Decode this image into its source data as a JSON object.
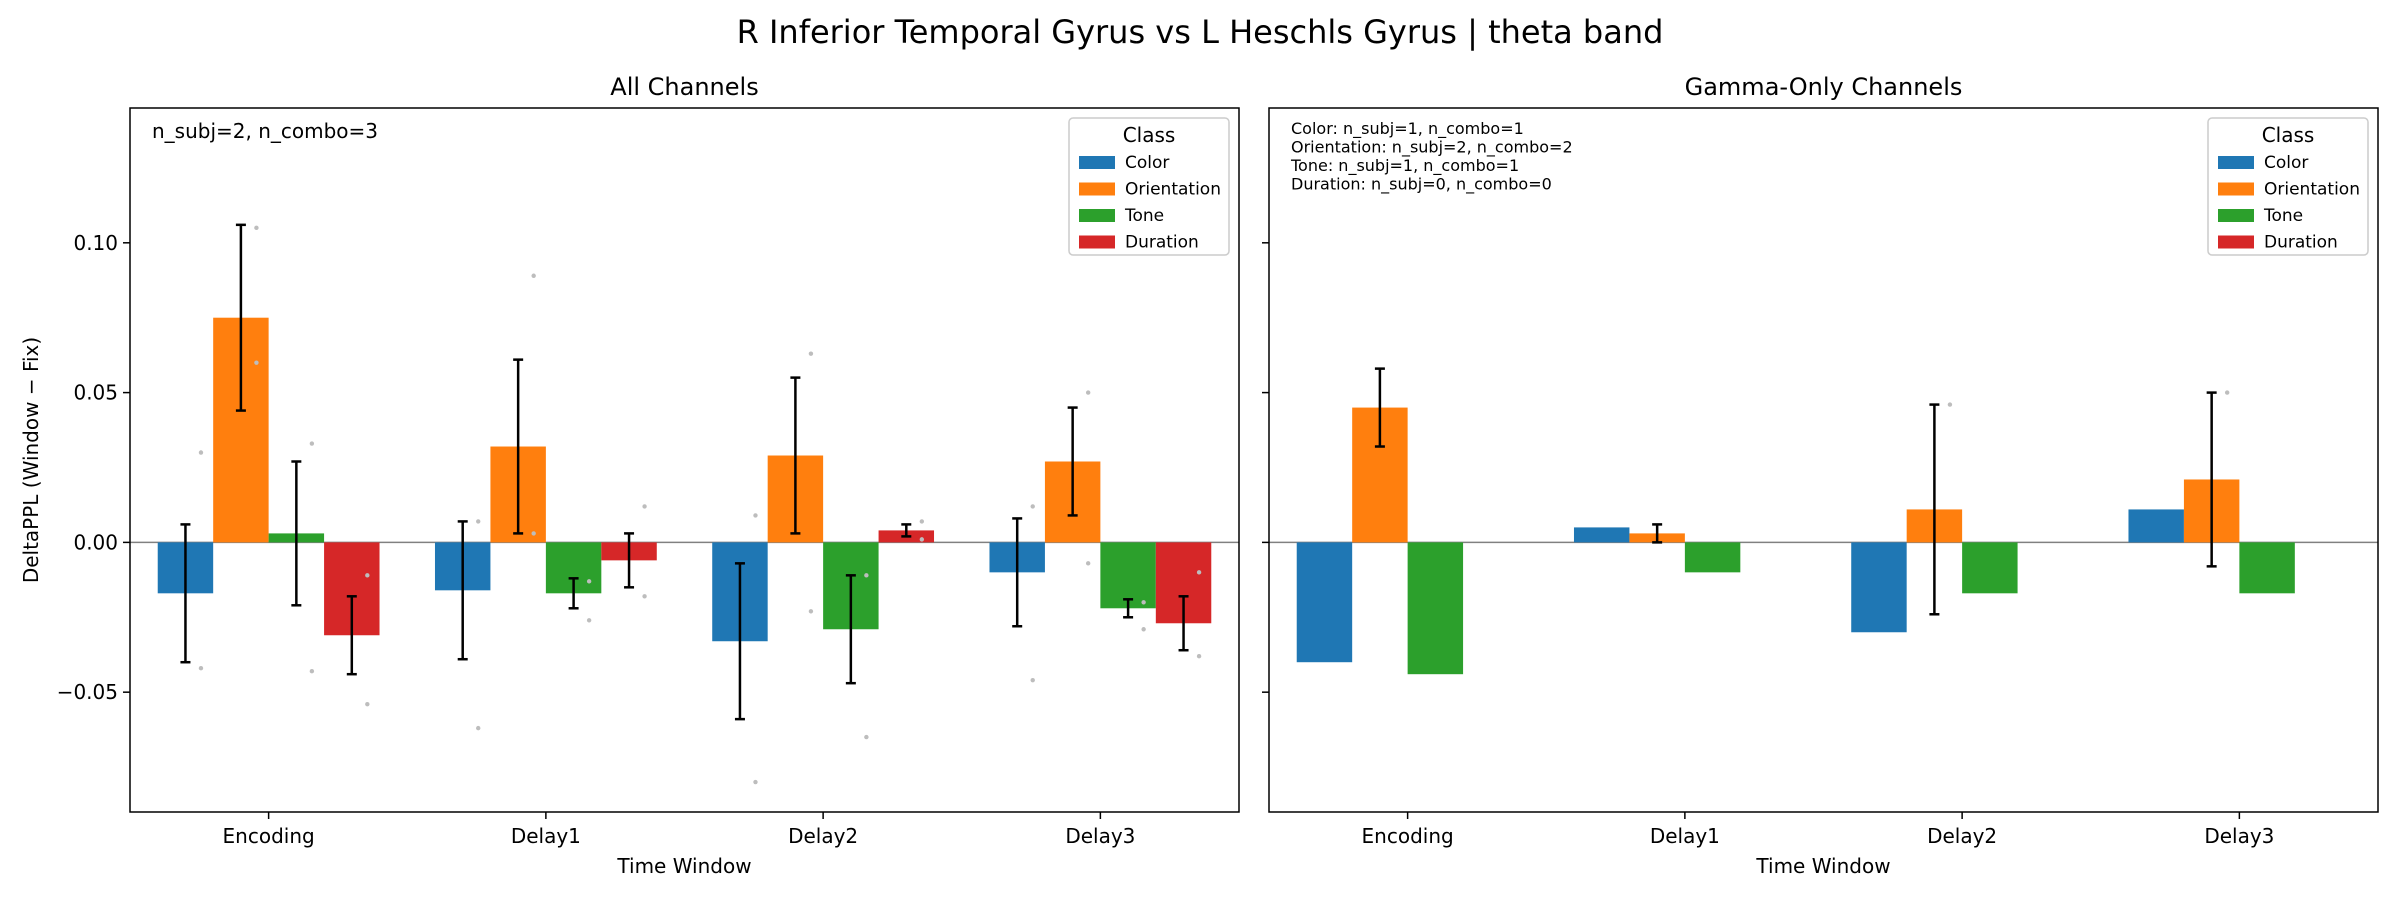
{
  "suptitle": "R Inferior Temporal Gyrus vs L Heschls Gyrus  |  theta band",
  "colors": {
    "Color": "#1f77b4",
    "Orientation": "#ff7f0e",
    "Tone": "#2ca02c",
    "Duration": "#d62728",
    "errorbar": "#000000",
    "zero_line": "#808080",
    "points": "#bdbdbd"
  },
  "chart_data": [
    {
      "type": "bar",
      "title": "All Channels",
      "xlabel": "Time Window",
      "ylabel": "DeltaPPL (Window − Fix)",
      "categories": [
        "Encoding",
        "Delay1",
        "Delay2",
        "Delay3"
      ],
      "ylim": [
        -0.09,
        0.145
      ],
      "yticks": [
        -0.05,
        0.0,
        0.05,
        0.1
      ],
      "ytick_labels": [
        "−0.05",
        "0.00",
        "0.05",
        "0.10"
      ],
      "legend_title": "Class",
      "legend_position": "top-right",
      "annotations": [
        "n_subj=2, n_combo=3"
      ],
      "series": [
        {
          "name": "Color",
          "values": [
            -0.017,
            -0.016,
            -0.033,
            -0.01
          ],
          "err": [
            0.023,
            0.023,
            0.026,
            0.018
          ]
        },
        {
          "name": "Orientation",
          "values": [
            0.075,
            0.032,
            0.029,
            0.027
          ],
          "err": [
            0.031,
            0.029,
            0.026,
            0.018
          ]
        },
        {
          "name": "Tone",
          "values": [
            0.003,
            -0.017,
            -0.029,
            -0.022
          ],
          "err": [
            0.024,
            0.005,
            0.018,
            0.003
          ]
        },
        {
          "name": "Duration",
          "values": [
            -0.031,
            -0.006,
            0.004,
            -0.027
          ],
          "err": [
            0.013,
            0.009,
            0.002,
            0.009
          ]
        }
      ],
      "points": [
        {
          "series": 0,
          "cat": 0,
          "y": 0.03
        },
        {
          "series": 0,
          "cat": 0,
          "y": -0.042
        },
        {
          "series": 1,
          "cat": 0,
          "y": 0.06
        },
        {
          "series": 1,
          "cat": 0,
          "y": 0.105
        },
        {
          "series": 2,
          "cat": 0,
          "y": 0.033
        },
        {
          "series": 2,
          "cat": 0,
          "y": -0.043
        },
        {
          "series": 3,
          "cat": 0,
          "y": -0.011
        },
        {
          "series": 3,
          "cat": 0,
          "y": -0.054
        },
        {
          "series": 0,
          "cat": 1,
          "y": -0.062
        },
        {
          "series": 0,
          "cat": 1,
          "y": 0.007
        },
        {
          "series": 1,
          "cat": 1,
          "y": 0.089
        },
        {
          "series": 1,
          "cat": 1,
          "y": 0.003
        },
        {
          "series": 2,
          "cat": 1,
          "y": -0.026
        },
        {
          "series": 2,
          "cat": 1,
          "y": -0.013
        },
        {
          "series": 3,
          "cat": 1,
          "y": 0.012
        },
        {
          "series": 3,
          "cat": 1,
          "y": -0.018
        },
        {
          "series": 0,
          "cat": 2,
          "y": 0.009
        },
        {
          "series": 0,
          "cat": 2,
          "y": -0.08
        },
        {
          "series": 1,
          "cat": 2,
          "y": 0.063
        },
        {
          "series": 1,
          "cat": 2,
          "y": -0.023
        },
        {
          "series": 2,
          "cat": 2,
          "y": -0.065
        },
        {
          "series": 2,
          "cat": 2,
          "y": -0.011
        },
        {
          "series": 3,
          "cat": 2,
          "y": 0.007
        },
        {
          "series": 3,
          "cat": 2,
          "y": 0.001
        },
        {
          "series": 0,
          "cat": 3,
          "y": 0.012
        },
        {
          "series": 0,
          "cat": 3,
          "y": -0.046
        },
        {
          "series": 1,
          "cat": 3,
          "y": 0.05
        },
        {
          "series": 1,
          "cat": 3,
          "y": -0.007
        },
        {
          "series": 2,
          "cat": 3,
          "y": -0.029
        },
        {
          "series": 2,
          "cat": 3,
          "y": -0.02
        },
        {
          "series": 3,
          "cat": 3,
          "y": -0.01
        },
        {
          "series": 3,
          "cat": 3,
          "y": -0.038
        }
      ]
    },
    {
      "type": "bar",
      "title": "Gamma-Only Channels",
      "xlabel": "Time Window",
      "ylabel": "",
      "categories": [
        "Encoding",
        "Delay1",
        "Delay2",
        "Delay3"
      ],
      "ylim": [
        -0.09,
        0.145
      ],
      "yticks": [
        -0.05,
        0.0,
        0.05,
        0.1
      ],
      "ytick_labels": [],
      "legend_title": "Class",
      "legend_position": "top-right",
      "annotations": [
        "Color: n_subj=1, n_combo=1",
        "Orientation: n_subj=2, n_combo=2",
        "Tone: n_subj=1, n_combo=1",
        "Duration: n_subj=0, n_combo=0"
      ],
      "series": [
        {
          "name": "Color",
          "values": [
            -0.04,
            0.005,
            -0.03,
            0.011
          ],
          "err": [
            null,
            null,
            null,
            null
          ]
        },
        {
          "name": "Orientation",
          "values": [
            0.045,
            0.003,
            0.011,
            0.021
          ],
          "err": [
            0.013,
            0.003,
            0.035,
            0.029
          ]
        },
        {
          "name": "Tone",
          "values": [
            -0.044,
            -0.01,
            -0.017,
            -0.017
          ],
          "err": [
            null,
            null,
            null,
            null
          ]
        },
        {
          "name": "Duration",
          "values": [
            null,
            null,
            null,
            null
          ],
          "err": [
            null,
            null,
            null,
            null
          ]
        }
      ],
      "points": [
        {
          "series": 1,
          "cat": 2,
          "y": 0.046
        },
        {
          "series": 1,
          "cat": 3,
          "y": 0.05
        }
      ]
    }
  ]
}
